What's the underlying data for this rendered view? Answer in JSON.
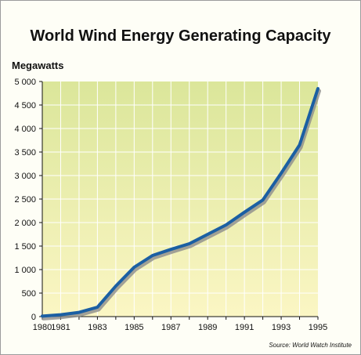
{
  "chart_data": {
    "type": "area",
    "title": "World Wind Energy Generating Capacity",
    "ylabel": "Megawatts",
    "xlabel": "",
    "source": "Source: World Watch Institute",
    "xlim": [
      1980,
      1995
    ],
    "ylim": [
      0,
      5000
    ],
    "x_ticks": [
      "1980",
      "1981",
      "1983",
      "1985",
      "1987",
      "1989",
      "1991",
      "1993",
      "1995"
    ],
    "y_ticks": [
      "0",
      "500",
      "1 000",
      "1 500",
      "2 000",
      "2 500",
      "3 000",
      "3 500",
      "4 000",
      "4 500",
      "5 000"
    ],
    "y_tick_values": [
      0,
      500,
      1000,
      1500,
      2000,
      2500,
      3000,
      3500,
      4000,
      4500,
      5000
    ],
    "grid": true,
    "series": [
      {
        "x": [
          1980,
          1981,
          1982,
          1983,
          1984,
          1985,
          1986,
          1987,
          1988,
          1989,
          1990,
          1991,
          1992,
          1993,
          1994,
          1995
        ],
        "values": [
          10,
          40,
          90,
          200,
          650,
          1050,
          1300,
          1430,
          1550,
          1750,
          1950,
          2220,
          2480,
          3050,
          3650,
          4850
        ]
      }
    ],
    "colors": {
      "line": "#1b5fa3",
      "shadow": "#8c8c8c",
      "fill_top": "#dbe69a",
      "fill_bottom": "#fbf6c4",
      "grid": "#ffffff",
      "axis": "#111111"
    }
  }
}
